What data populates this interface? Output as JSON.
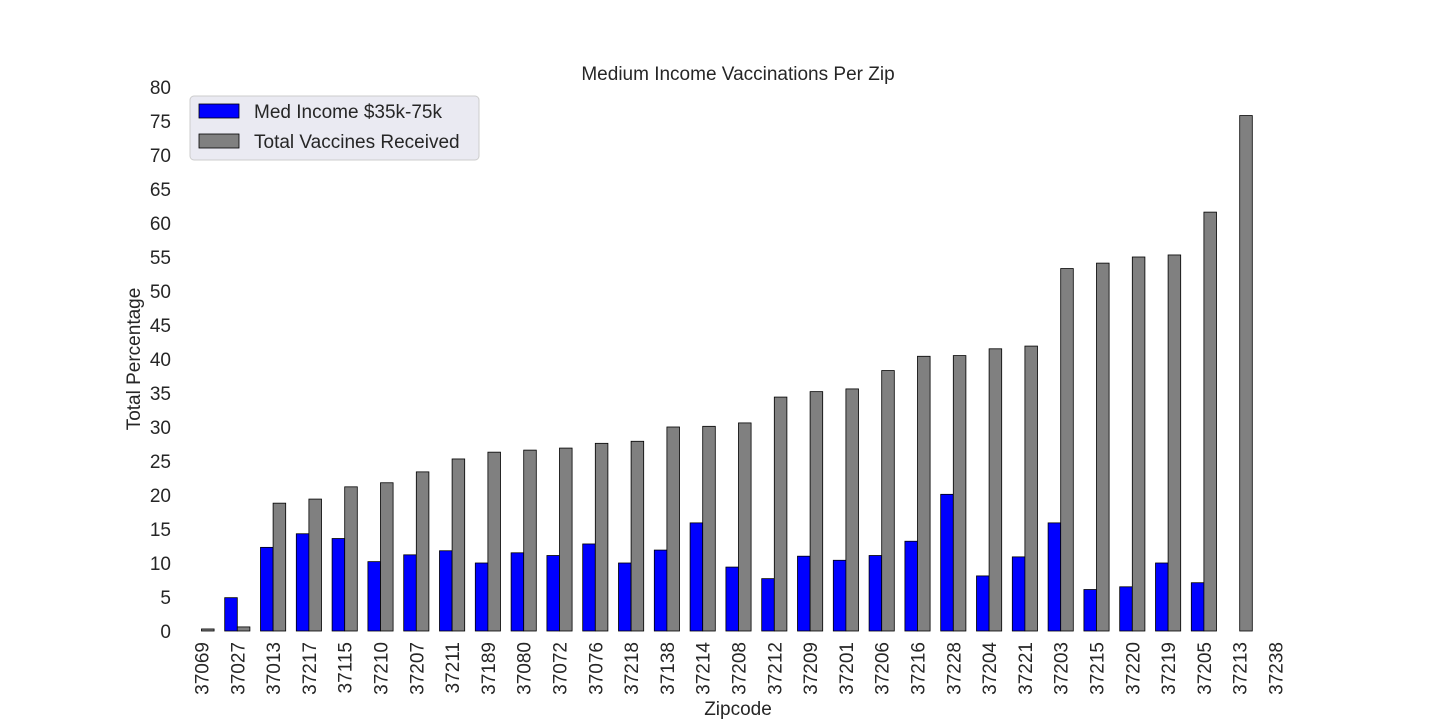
{
  "chart_data": {
    "type": "bar",
    "title": "Medium Income Vaccinations Per Zip",
    "xlabel": "Zipcode",
    "ylabel": "Total Percentage",
    "ylim": [
      0,
      80
    ],
    "yticks": [
      0,
      5,
      10,
      15,
      20,
      25,
      30,
      35,
      40,
      45,
      50,
      55,
      60,
      65,
      70,
      75,
      80
    ],
    "grid": false,
    "legend_position": "top-left",
    "categories": [
      "37069",
      "37027",
      "37013",
      "37217",
      "37115",
      "37210",
      "37207",
      "37211",
      "37189",
      "37080",
      "37072",
      "37076",
      "37218",
      "37138",
      "37214",
      "37208",
      "37212",
      "37209",
      "37201",
      "37206",
      "37216",
      "37228",
      "37204",
      "37221",
      "37203",
      "37215",
      "37220",
      "37219",
      "37205",
      "37213",
      "37238"
    ],
    "series": [
      {
        "name": "Med Income $35k-75k",
        "color": "#0000ff",
        "values": [
          0,
          4.9,
          12.3,
          14.3,
          13.6,
          10.2,
          11.2,
          11.8,
          10.0,
          11.5,
          11.1,
          12.8,
          10.0,
          11.9,
          15.9,
          9.4,
          7.7,
          11.0,
          10.4,
          11.1,
          13.2,
          20.1,
          8.1,
          10.9,
          15.9,
          6.1,
          6.5,
          10.0,
          7.1,
          0,
          0
        ]
      },
      {
        "name": "Total Vaccines Received",
        "color": "#808080",
        "values": [
          0.3,
          0.6,
          18.8,
          19.4,
          21.2,
          21.8,
          23.4,
          25.3,
          26.3,
          26.6,
          26.9,
          27.6,
          27.9,
          30.0,
          30.1,
          30.6,
          34.4,
          35.2,
          35.6,
          38.3,
          40.4,
          40.5,
          41.5,
          41.9,
          53.3,
          54.1,
          55.0,
          55.3,
          61.6,
          75.8,
          0
        ]
      }
    ]
  }
}
